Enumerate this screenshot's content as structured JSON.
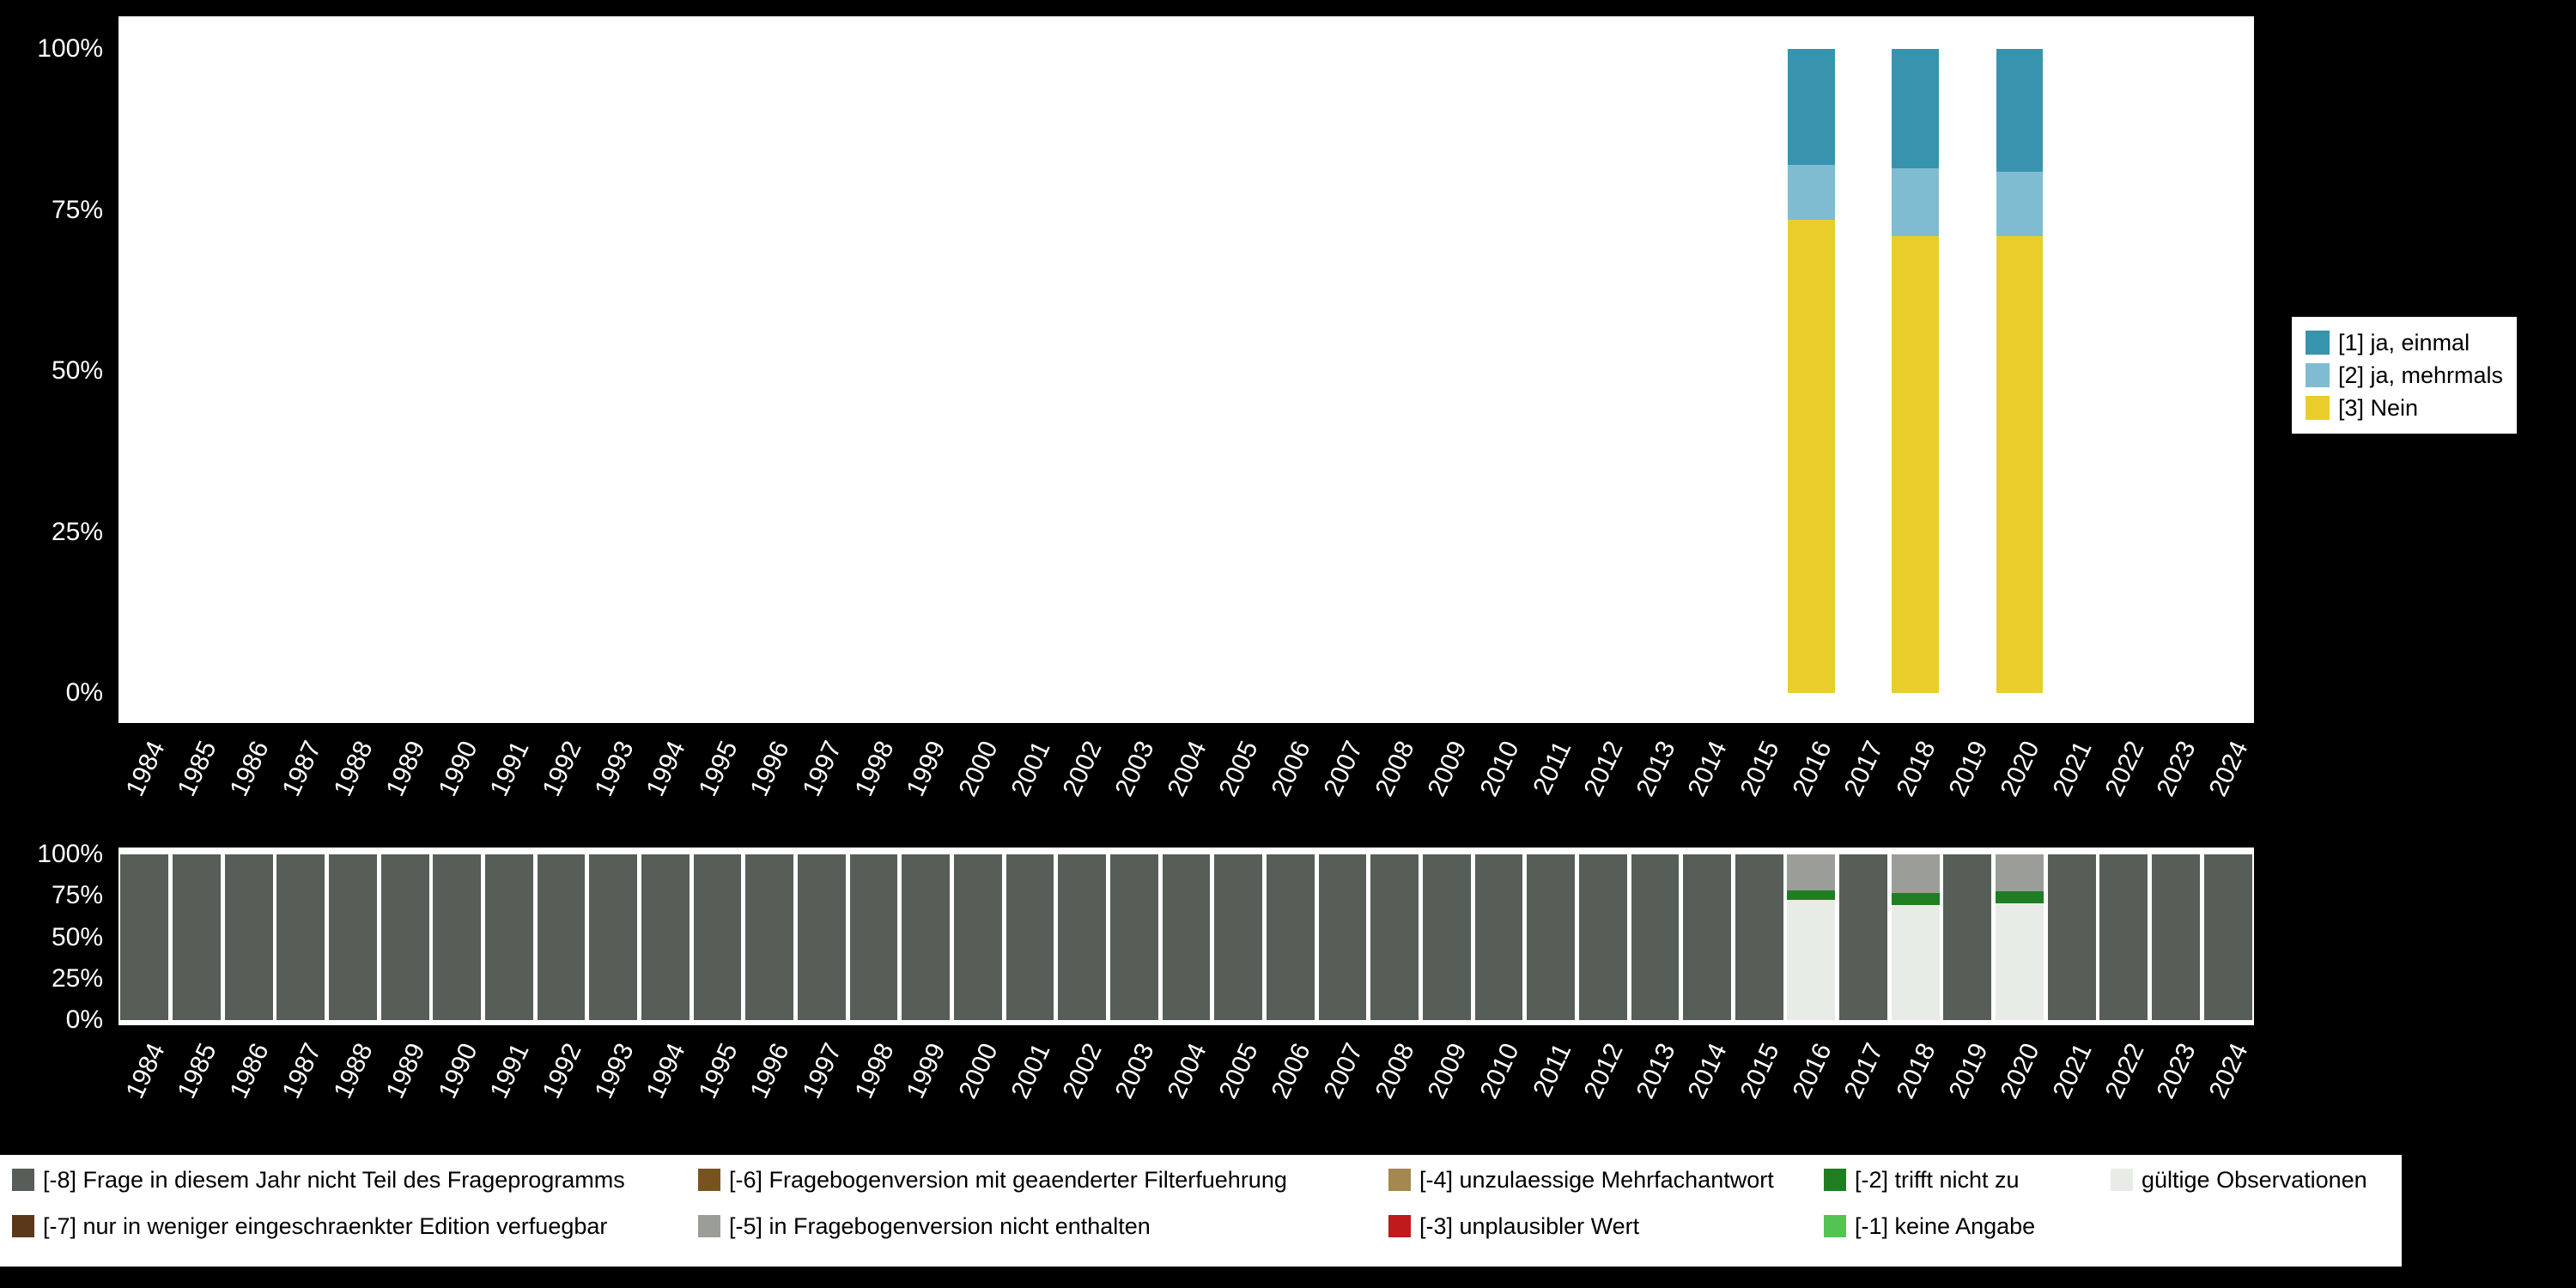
{
  "colors": {
    "background": "#000000",
    "plot_background": "#ffffff",
    "axis_text": "#ffffff"
  },
  "top_legend": {
    "items": [
      {
        "label": "[1] ja, einmal",
        "color": "#3793ae"
      },
      {
        "label": "[2] ja, mehrmals",
        "color": "#7fbcd2"
      },
      {
        "label": "[3] Nein",
        "color": "#e9ce2b"
      }
    ]
  },
  "missings_legend": {
    "columns": [
      {
        "items": [
          {
            "label": "[-8] Frage in diesem Jahr nicht Teil des Frageprogramms",
            "color": "#565e57"
          },
          {
            "label": "[-7] nur in weniger eingeschraenkter Edition verfuegbar",
            "color": "#5a381a"
          }
        ]
      },
      {
        "items": [
          {
            "label": "[-6] Fragebogenversion mit geaenderter Filterfuehrung",
            "color": "#77541f"
          },
          {
            "label": "[-5] in Fragebogenversion nicht enthalten",
            "color": "#9b9d99"
          }
        ]
      },
      {
        "items": [
          {
            "label": "[-4] unzulaessige Mehrfachantwort",
            "color": "#a3894f"
          },
          {
            "label": "[-3] unplausibler Wert",
            "color": "#bf1b1b"
          }
        ]
      },
      {
        "items": [
          {
            "label": "[-2] trifft nicht zu",
            "color": "#1f7d22"
          },
          {
            "label": "[-1] keine Angabe",
            "color": "#52c452"
          }
        ]
      },
      {
        "items": [
          {
            "label": "gültige Observationen",
            "color": "#e8ece6"
          }
        ]
      }
    ]
  },
  "chart_data": [
    {
      "type": "bar",
      "variant": "stacked_percent",
      "title": "",
      "xlabel": "",
      "ylabel": "",
      "ylim": [
        0,
        100
      ],
      "yticks": [
        0,
        25,
        50,
        75,
        100
      ],
      "ytick_labels": [
        "0%",
        "25%",
        "50%",
        "75%",
        "100%"
      ],
      "legend_position": "right",
      "grid": false,
      "x": [
        "1984",
        "1985",
        "1986",
        "1987",
        "1988",
        "1989",
        "1990",
        "1991",
        "1992",
        "1993",
        "1994",
        "1995",
        "1996",
        "1997",
        "1998",
        "1999",
        "2000",
        "2001",
        "2002",
        "2003",
        "2004",
        "2005",
        "2006",
        "2007",
        "2008",
        "2009",
        "2010",
        "2011",
        "2012",
        "2013",
        "2014",
        "2015",
        "2016",
        "2017",
        "2018",
        "2019",
        "2020",
        "2021",
        "2022",
        "2023",
        "2024"
      ],
      "series": [
        {
          "name": "[3] Nein",
          "color": "#e9ce2b",
          "values": {
            "2016": 73.5,
            "2018": 71.0,
            "2020": 71.0
          }
        },
        {
          "name": "[2] ja, mehrmals",
          "color": "#7fbcd2",
          "values": {
            "2016": 8.5,
            "2018": 10.5,
            "2020": 10.0
          }
        },
        {
          "name": "[1] ja, einmal",
          "color": "#3793ae",
          "values": {
            "2016": 18.0,
            "2018": 18.5,
            "2020": 19.0
          }
        }
      ]
    },
    {
      "type": "bar",
      "variant": "stacked_percent",
      "title": "",
      "xlabel": "",
      "ylabel": "",
      "ylim": [
        0,
        100
      ],
      "yticks": [
        0,
        25,
        50,
        75,
        100
      ],
      "ytick_labels": [
        "0%",
        "25%",
        "50%",
        "75%",
        "100%"
      ],
      "legend_position": "bottom",
      "grid": false,
      "x": [
        "1984",
        "1985",
        "1986",
        "1987",
        "1988",
        "1989",
        "1990",
        "1991",
        "1992",
        "1993",
        "1994",
        "1995",
        "1996",
        "1997",
        "1998",
        "1999",
        "2000",
        "2001",
        "2002",
        "2003",
        "2004",
        "2005",
        "2006",
        "2007",
        "2008",
        "2009",
        "2010",
        "2011",
        "2012",
        "2013",
        "2014",
        "2015",
        "2016",
        "2017",
        "2018",
        "2019",
        "2020",
        "2021",
        "2022",
        "2023",
        "2024"
      ],
      "series": [
        {
          "name": "gültige Observationen",
          "color": "#e8ece6",
          "values": {
            "2016": 72.5,
            "2018": 69.5,
            "2020": 70.5
          }
        },
        {
          "name": "[-2] trifft nicht zu",
          "color": "#1f7d22",
          "values": {
            "2016": 6.0,
            "2018": 7.0,
            "2020": 7.0
          }
        },
        {
          "name": "[-5] in Fragebogenversion nicht enthalten",
          "color": "#9b9d99",
          "values": {
            "2016": 21.5,
            "2018": 23.5,
            "2020": 22.5
          }
        },
        {
          "name": "[-8] Frage in diesem Jahr nicht Teil des Frageprogramms",
          "color": "#565e57",
          "values": {
            "default": 100,
            "2016": 0,
            "2018": 0,
            "2020": 0
          }
        }
      ]
    }
  ]
}
